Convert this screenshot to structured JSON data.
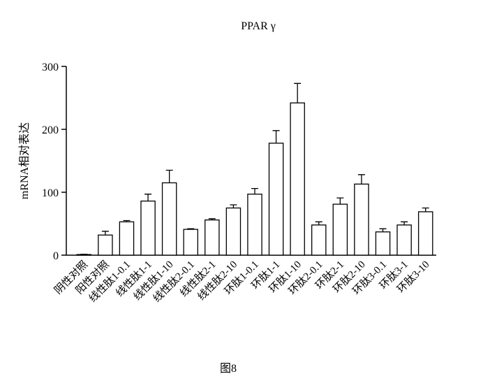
{
  "chart_data": {
    "type": "bar",
    "title": "PPAR γ",
    "y_label": "mRNA相对表达",
    "caption": "图8",
    "categories": [
      "阴性对照",
      "阳性对照",
      "线性肽1-0.1",
      "线性肽1-1",
      "线性肽1-10",
      "线性肽2-0.1",
      "线性肽2-1",
      "线性肽2-10",
      "环肽1-0.1",
      "环肽1-1",
      "环肽1-10",
      "环肽2-0.1",
      "环肽2-1",
      "环肽2-10",
      "环肽3-0.1",
      "环肽3-1",
      "环肽3-10"
    ],
    "values": [
      1,
      32,
      53,
      86,
      115,
      41,
      56,
      75,
      97,
      178,
      242,
      48,
      81,
      113,
      37,
      48,
      69
    ],
    "errors": [
      0.5,
      6,
      2,
      11,
      20,
      1,
      2,
      5,
      9,
      20,
      31,
      5,
      10,
      15,
      5,
      5,
      6
    ],
    "color": "#ffffff",
    "edge_color": "#000000",
    "ylim": [
      0,
      300
    ],
    "yticks": [
      0,
      100,
      200,
      300
    ]
  }
}
